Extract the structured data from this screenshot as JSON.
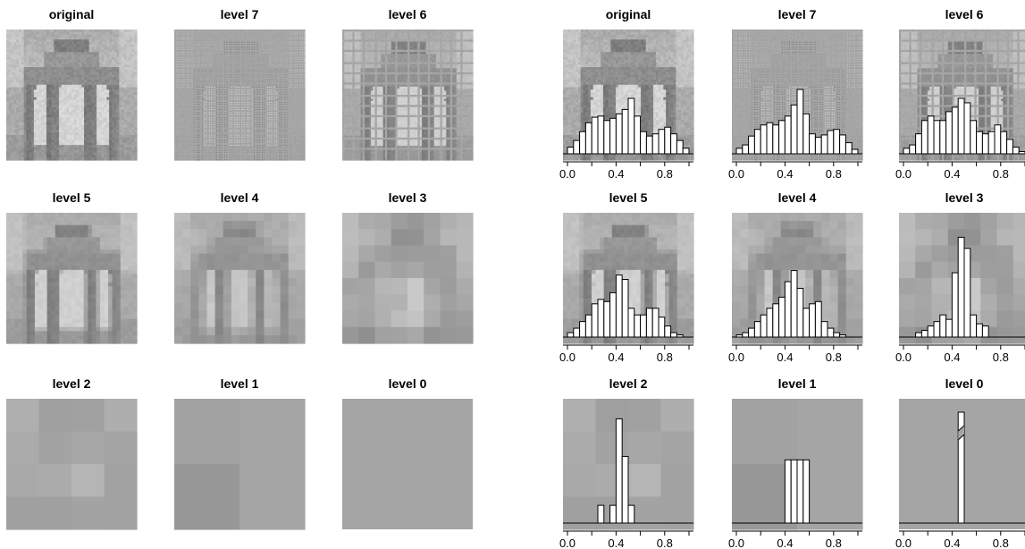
{
  "figure": {
    "description_visible": "two grids of 9 panels each"
  },
  "chart_data": [
    {
      "type": "heatmap",
      "group": "left",
      "panels": [
        {
          "title": "original"
        },
        {
          "title": "level 7"
        },
        {
          "title": "level 6"
        },
        {
          "title": "level 5"
        },
        {
          "title": "level 4"
        },
        {
          "title": "level 3"
        },
        {
          "title": "level 2"
        },
        {
          "title": "level 1"
        },
        {
          "title": "level 0"
        }
      ]
    },
    {
      "type": "bar",
      "group": "right",
      "x_ticks": [
        "0.0",
        "0.4",
        "0.8"
      ],
      "xlim": [
        0,
        1
      ],
      "ylim": [
        0,
        1
      ],
      "panels": [
        {
          "title": "original",
          "bin_width": 0.05,
          "start": 0.0,
          "values": [
            0.06,
            0.12,
            0.2,
            0.28,
            0.33,
            0.34,
            0.3,
            0.32,
            0.36,
            0.4,
            0.5,
            0.34,
            0.2,
            0.16,
            0.18,
            0.22,
            0.24,
            0.18,
            0.12,
            0.05
          ]
        },
        {
          "title": "level 7",
          "bin_width": 0.05,
          "start": 0.0,
          "values": [
            0.05,
            0.08,
            0.16,
            0.22,
            0.26,
            0.28,
            0.26,
            0.3,
            0.34,
            0.44,
            0.58,
            0.36,
            0.18,
            0.15,
            0.17,
            0.21,
            0.22,
            0.17,
            0.1,
            0.04
          ]
        },
        {
          "title": "level 6",
          "bin_width": 0.05,
          "start": 0.0,
          "values": [
            0.05,
            0.08,
            0.18,
            0.3,
            0.34,
            0.3,
            0.3,
            0.38,
            0.42,
            0.5,
            0.46,
            0.3,
            0.2,
            0.18,
            0.2,
            0.26,
            0.2,
            0.13,
            0.06,
            0.02
          ]
        },
        {
          "title": "level 5",
          "bin_width": 0.05,
          "start": 0.0,
          "values": [
            0.04,
            0.08,
            0.14,
            0.2,
            0.3,
            0.34,
            0.32,
            0.4,
            0.56,
            0.52,
            0.26,
            0.2,
            0.2,
            0.26,
            0.26,
            0.18,
            0.1,
            0.04,
            0.02,
            0.0
          ]
        },
        {
          "title": "level 4",
          "bin_width": 0.05,
          "start": 0.0,
          "values": [
            0.02,
            0.04,
            0.08,
            0.14,
            0.2,
            0.26,
            0.3,
            0.36,
            0.5,
            0.6,
            0.44,
            0.26,
            0.3,
            0.32,
            0.14,
            0.08,
            0.04,
            0.02,
            0.0,
            0.0
          ]
        },
        {
          "title": "level 3",
          "bin_width": 0.05,
          "start": 0.0,
          "values": [
            0.0,
            0.0,
            0.04,
            0.06,
            0.1,
            0.14,
            0.2,
            0.16,
            0.58,
            0.9,
            0.8,
            0.2,
            0.12,
            0.1,
            0.0,
            0.0,
            0.0,
            0.0,
            0.0,
            0.0
          ]
        },
        {
          "title": "level 2",
          "bin_width": 0.05,
          "start": 0.0,
          "values": [
            0.0,
            0.0,
            0.0,
            0.0,
            0.0,
            0.16,
            0.0,
            0.16,
            0.94,
            0.6,
            0.16,
            0.0,
            0.0,
            0.0,
            0.0,
            0.0,
            0.0,
            0.0,
            0.0,
            0.0
          ]
        },
        {
          "title": "level 1",
          "bin_width": 0.05,
          "start": 0.0,
          "values": [
            0.0,
            0.0,
            0.0,
            0.0,
            0.0,
            0.0,
            0.0,
            0.0,
            0.57,
            0.57,
            0.57,
            0.57,
            0.0,
            0.0,
            0.0,
            0.0,
            0.0,
            0.0,
            0.0,
            0.0
          ]
        },
        {
          "title": "level 0",
          "bin_width": 0.05,
          "start": 0.0,
          "values": [
            0.0,
            0.0,
            0.0,
            0.0,
            0.0,
            0.0,
            0.0,
            0.0,
            0.0,
            1.0,
            0.0,
            0.0,
            0.0,
            0.0,
            0.0,
            0.0,
            0.0,
            0.0,
            0.0,
            0.0
          ],
          "axis_break": true
        }
      ]
    }
  ]
}
